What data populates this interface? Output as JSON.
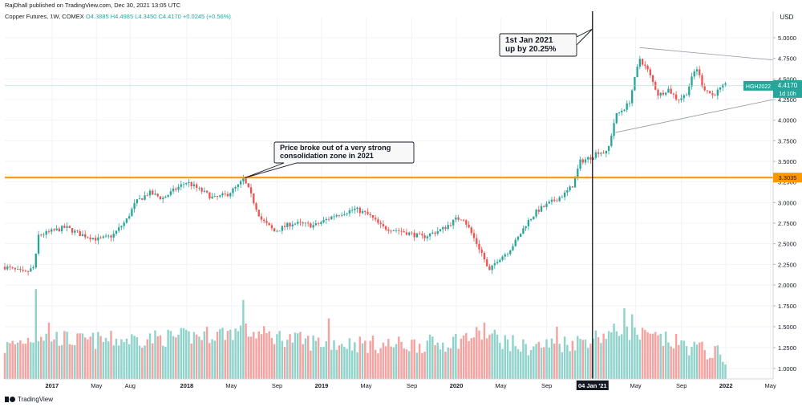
{
  "header": {
    "published_by": "RajDhall published on TradingView.com, Dec 30, 2021 13:05 UTC",
    "symbol_info": "Copper Futures, 1W, COMEX",
    "open": "O4.3885",
    "high": "H4.4985",
    "low": "L4.3450",
    "close": "C4.4170",
    "change": "+0.0245 (+0.56%)"
  },
  "footer": {
    "brand": "TradingView"
  },
  "colors": {
    "up": "#26a69a",
    "down": "#ef5350",
    "vol_up": "#8fd3cb",
    "vol_down": "#f5a3a1",
    "level": "#ff9800",
    "last_price": "#26a69a",
    "grid": "#f0f3fa"
  },
  "chart_data": {
    "type": "candlestick",
    "title": "Copper Futures, 1W, COMEX",
    "currency": "USD",
    "y_axis": {
      "ticks": [
        "5.0000",
        "4.7500",
        "4.5000",
        "4.2500",
        "4.0000",
        "3.7500",
        "3.5000",
        "3.2500",
        "3.0000",
        "2.7500",
        "2.5000",
        "2.2500",
        "2.0000",
        "1.7500",
        "1.5000",
        "1.2500",
        "1.0000"
      ],
      "price_range": [
        2.0,
        5.0
      ],
      "volume_scale_range": [
        1.0,
        1.75
      ]
    },
    "x_axis": {
      "ticks": [
        "2017",
        "May",
        "Aug",
        "2018",
        "May",
        "Sep",
        "2019",
        "May",
        "Sep",
        "2020",
        "May",
        "Sep",
        "04 Jan '21",
        "May",
        "Sep",
        "2022",
        "May"
      ],
      "range_years": [
        2016.65,
        2022.35
      ]
    },
    "price_keypoints": [
      {
        "t": 2016.65,
        "p": 2.22
      },
      {
        "t": 2016.8,
        "p": 2.14
      },
      {
        "t": 2016.87,
        "p": 2.22
      },
      {
        "t": 2016.9,
        "p": 2.6
      },
      {
        "t": 2017.0,
        "p": 2.65
      },
      {
        "t": 2017.1,
        "p": 2.7
      },
      {
        "t": 2017.2,
        "p": 2.62
      },
      {
        "t": 2017.35,
        "p": 2.55
      },
      {
        "t": 2017.45,
        "p": 2.6
      },
      {
        "t": 2017.55,
        "p": 2.78
      },
      {
        "t": 2017.62,
        "p": 3.0
      },
      {
        "t": 2017.72,
        "p": 3.12
      },
      {
        "t": 2017.82,
        "p": 3.05
      },
      {
        "t": 2017.95,
        "p": 3.2
      },
      {
        "t": 2018.0,
        "p": 3.25
      },
      {
        "t": 2018.1,
        "p": 3.15
      },
      {
        "t": 2018.2,
        "p": 3.05
      },
      {
        "t": 2018.3,
        "p": 3.1
      },
      {
        "t": 2018.38,
        "p": 3.2
      },
      {
        "t": 2018.42,
        "p": 3.28
      },
      {
        "t": 2018.46,
        "p": 3.15
      },
      {
        "t": 2018.55,
        "p": 2.8
      },
      {
        "t": 2018.65,
        "p": 2.65
      },
      {
        "t": 2018.78,
        "p": 2.75
      },
      {
        "t": 2018.95,
        "p": 2.72
      },
      {
        "t": 2019.1,
        "p": 2.85
      },
      {
        "t": 2019.25,
        "p": 2.92
      },
      {
        "t": 2019.35,
        "p": 2.85
      },
      {
        "t": 2019.45,
        "p": 2.7
      },
      {
        "t": 2019.6,
        "p": 2.65
      },
      {
        "t": 2019.75,
        "p": 2.58
      },
      {
        "t": 2019.9,
        "p": 2.68
      },
      {
        "t": 2020.0,
        "p": 2.8
      },
      {
        "t": 2020.05,
        "p": 2.82
      },
      {
        "t": 2020.12,
        "p": 2.6
      },
      {
        "t": 2020.2,
        "p": 2.35
      },
      {
        "t": 2020.24,
        "p": 2.15
      },
      {
        "t": 2020.3,
        "p": 2.3
      },
      {
        "t": 2020.38,
        "p": 2.4
      },
      {
        "t": 2020.45,
        "p": 2.55
      },
      {
        "t": 2020.52,
        "p": 2.75
      },
      {
        "t": 2020.6,
        "p": 2.9
      },
      {
        "t": 2020.7,
        "p": 3.0
      },
      {
        "t": 2020.8,
        "p": 3.1
      },
      {
        "t": 2020.86,
        "p": 3.2
      },
      {
        "t": 2020.92,
        "p": 3.5
      },
      {
        "t": 2021.0,
        "p": 3.55
      },
      {
        "t": 2021.05,
        "p": 3.62
      },
      {
        "t": 2021.12,
        "p": 3.6
      },
      {
        "t": 2021.18,
        "p": 4.05
      },
      {
        "t": 2021.28,
        "p": 4.2
      },
      {
        "t": 2021.36,
        "p": 4.75
      },
      {
        "t": 2021.42,
        "p": 4.6
      },
      {
        "t": 2021.5,
        "p": 4.3
      },
      {
        "t": 2021.57,
        "p": 4.38
      },
      {
        "t": 2021.64,
        "p": 4.25
      },
      {
        "t": 2021.7,
        "p": 4.3
      },
      {
        "t": 2021.78,
        "p": 4.65
      },
      {
        "t": 2021.83,
        "p": 4.4
      },
      {
        "t": 2021.9,
        "p": 4.3
      },
      {
        "t": 2021.99,
        "p": 4.417
      }
    ],
    "volume_keypoints": [
      {
        "t": 2016.65,
        "v": 1.25
      },
      {
        "t": 2016.9,
        "v": 1.4
      },
      {
        "t": 2017.2,
        "v": 1.33
      },
      {
        "t": 2017.6,
        "v": 1.35
      },
      {
        "t": 2018.0,
        "v": 1.38
      },
      {
        "t": 2018.4,
        "v": 1.45
      },
      {
        "t": 2018.9,
        "v": 1.32
      },
      {
        "t": 2019.5,
        "v": 1.28
      },
      {
        "t": 2019.9,
        "v": 1.3
      },
      {
        "t": 2020.2,
        "v": 1.42
      },
      {
        "t": 2020.5,
        "v": 1.25
      },
      {
        "t": 2020.9,
        "v": 1.32
      },
      {
        "t": 2021.2,
        "v": 1.45
      },
      {
        "t": 2021.6,
        "v": 1.32
      },
      {
        "t": 2021.99,
        "v": 1.15
      }
    ],
    "volume_spikes": [
      {
        "t": 2016.88,
        "v": 1.95
      },
      {
        "t": 2016.98,
        "v": 1.55
      },
      {
        "t": 2018.42,
        "v": 1.82
      },
      {
        "t": 2019.05,
        "v": 1.6
      },
      {
        "t": 2020.2,
        "v": 1.55
      },
      {
        "t": 2020.75,
        "v": 1.5
      },
      {
        "t": 2021.25,
        "v": 1.72
      },
      {
        "t": 2021.3,
        "v": 1.65
      }
    ],
    "horizontal_level": {
      "price": 3.3035,
      "label": "3.3035"
    },
    "last_price": {
      "label": "4.4170",
      "symbol": "HGH2022",
      "countdown": "1d 10h",
      "price": 4.417
    },
    "vertical_marker": {
      "time": 2021.01,
      "label": "04 Jan '21"
    },
    "triangle": {
      "upper": [
        {
          "t": 2021.36,
          "p": 4.88
        },
        {
          "t": 2022.35,
          "p": 4.73
        }
      ],
      "lower": [
        {
          "t": 2021.18,
          "p": 3.85
        },
        {
          "t": 2022.35,
          "p": 4.25
        }
      ]
    },
    "annotations": [
      {
        "name": "annotation-breakout",
        "lines": [
          "Price broke out of a very strong",
          "consolidation zone in 2021"
        ],
        "anchor": {
          "t": 2018.43,
          "p": 3.3
        }
      },
      {
        "name": "annotation-2021",
        "lines": [
          "1st Jan 2021",
          "up by 20.25%"
        ]
      }
    ]
  }
}
